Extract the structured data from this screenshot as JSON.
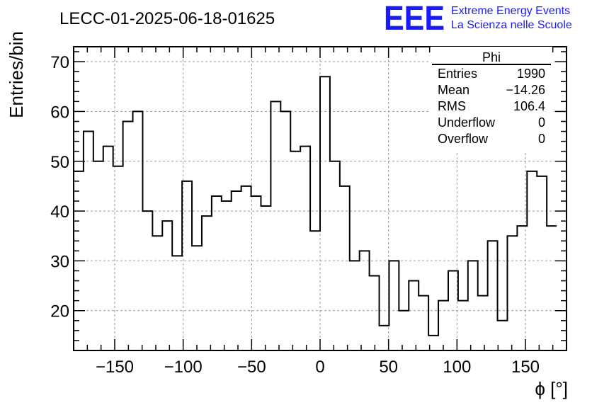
{
  "colors": {
    "histogram": "#000000",
    "grid": "#999999",
    "brand": "#1a1aff",
    "background": "#ffffff"
  },
  "brand": {
    "logo": "EEE",
    "line1": "Extreme Energy Events",
    "line2": "La Scienza nelle Scuole"
  },
  "chart_data": {
    "type": "bar",
    "title": "LECC-01-2025-06-18-01625",
    "xlabel": "ϕ [°]",
    "ylabel": "Entries/bin",
    "xlim": [
      -180,
      180
    ],
    "ylim": [
      12,
      73
    ],
    "x_ticks": [
      -150,
      -100,
      -50,
      0,
      50,
      100,
      150
    ],
    "y_ticks": [
      20,
      30,
      40,
      50,
      60,
      70
    ],
    "x_tick_labels": [
      "−150",
      "−100",
      "−50",
      "0",
      "50",
      "100",
      "150"
    ],
    "y_tick_labels": [
      "20",
      "30",
      "40",
      "50",
      "60",
      "70"
    ],
    "grid": true,
    "bin_edges_start": -180,
    "bin_width": 7.2,
    "values": [
      48,
      56,
      50,
      53,
      49,
      58,
      60,
      40,
      35,
      38,
      31,
      46,
      33,
      39,
      43,
      42,
      44,
      45,
      43,
      41,
      62,
      60,
      52,
      53,
      36,
      67,
      50,
      45,
      30,
      32,
      27,
      17,
      30,
      20,
      26,
      23,
      15,
      22,
      28,
      22,
      30,
      23,
      34,
      18,
      35,
      37,
      48,
      47,
      37
    ],
    "stats_box": {
      "title": "Phi",
      "rows": [
        {
          "label": "Entries",
          "value": "1990"
        },
        {
          "label": "Mean",
          "value": "−14.26"
        },
        {
          "label": "RMS",
          "value": "106.4"
        },
        {
          "label": "Underflow",
          "value": "0"
        },
        {
          "label": "Overflow",
          "value": "0"
        }
      ]
    }
  }
}
